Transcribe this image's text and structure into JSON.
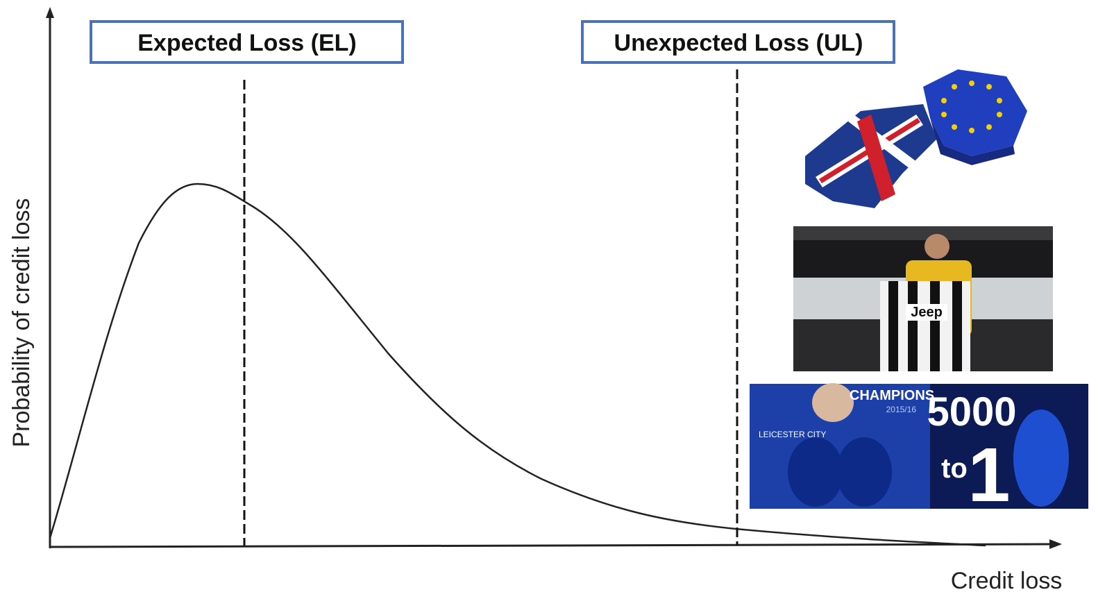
{
  "diagram": {
    "boxes": {
      "expected_loss": "Expected Loss (EL)",
      "unexpected_loss": "Unexpected Loss (UL)"
    },
    "axes": {
      "y_label": "Probability of credit loss",
      "x_label": "Credit loss"
    },
    "images": {
      "juventus": {
        "shirt_text": "Jeep"
      },
      "leicester": {
        "banner": "CHAMPIONS",
        "season": "2015/16",
        "club": "LEICESTER CITY",
        "odds_top": "5000",
        "odds_mid": "to",
        "odds_bottom": "1"
      }
    }
  }
}
